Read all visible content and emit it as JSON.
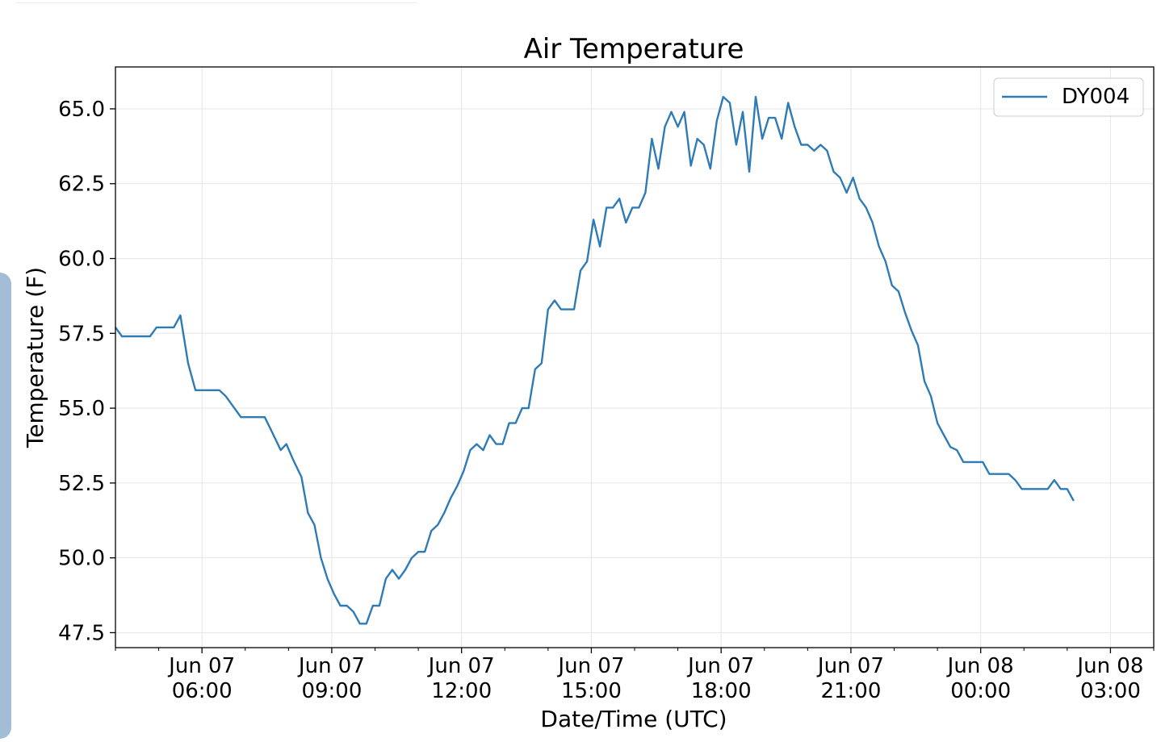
{
  "chart_data": {
    "type": "line",
    "title": "Air Temperature",
    "xlabel": "Date/Time (UTC)",
    "ylabel": "Temperature (F)",
    "x_unit": "hours",
    "xlim_hours": [
      4.0,
      28.0
    ],
    "ylim": [
      47.0,
      66.4
    ],
    "y_ticks": [
      47.5,
      50.0,
      52.5,
      55.0,
      57.5,
      60.0,
      62.5,
      65.0
    ],
    "x_ticks": [
      {
        "hour": 6,
        "line1": "Jun 07",
        "line2": "06:00"
      },
      {
        "hour": 9,
        "line1": "Jun 07",
        "line2": "09:00"
      },
      {
        "hour": 12,
        "line1": "Jun 07",
        "line2": "12:00"
      },
      {
        "hour": 15,
        "line1": "Jun 07",
        "line2": "15:00"
      },
      {
        "hour": 18,
        "line1": "Jun 07",
        "line2": "18:00"
      },
      {
        "hour": 21,
        "line1": "Jun 07",
        "line2": "21:00"
      },
      {
        "hour": 24,
        "line1": "Jun 08",
        "line2": "00:00"
      },
      {
        "hour": 27,
        "line1": "Jun 08",
        "line2": "03:00"
      }
    ],
    "grid": true,
    "legend": {
      "position": "top-right"
    },
    "series": [
      {
        "name": "DY004",
        "color": "#2f7bb5",
        "points": [
          [
            4.0,
            57.7
          ],
          [
            4.15,
            57.4
          ],
          [
            4.8,
            57.4
          ],
          [
            4.95,
            57.7
          ],
          [
            5.35,
            57.7
          ],
          [
            5.5,
            58.1
          ],
          [
            5.68,
            56.5
          ],
          [
            5.85,
            55.6
          ],
          [
            6.4,
            55.6
          ],
          [
            6.55,
            55.4
          ],
          [
            6.7,
            55.1
          ],
          [
            6.9,
            54.7
          ],
          [
            7.45,
            54.7
          ],
          [
            7.62,
            54.2
          ],
          [
            7.82,
            53.6
          ],
          [
            7.95,
            53.8
          ],
          [
            8.1,
            53.3
          ],
          [
            8.3,
            52.7
          ],
          [
            8.45,
            51.5
          ],
          [
            8.6,
            51.1
          ],
          [
            8.75,
            50.0
          ],
          [
            8.9,
            49.3
          ],
          [
            9.05,
            48.8
          ],
          [
            9.2,
            48.4
          ],
          [
            9.35,
            48.4
          ],
          [
            9.5,
            48.2
          ],
          [
            9.65,
            47.8
          ],
          [
            9.8,
            47.8
          ],
          [
            9.95,
            48.4
          ],
          [
            10.1,
            48.4
          ],
          [
            10.25,
            49.3
          ],
          [
            10.4,
            49.6
          ],
          [
            10.55,
            49.3
          ],
          [
            10.7,
            49.6
          ],
          [
            10.85,
            50.0
          ],
          [
            11.0,
            50.2
          ],
          [
            11.15,
            50.2
          ],
          [
            11.3,
            50.9
          ],
          [
            11.45,
            51.1
          ],
          [
            11.6,
            51.5
          ],
          [
            11.75,
            52.0
          ],
          [
            11.9,
            52.4
          ],
          [
            12.05,
            52.9
          ],
          [
            12.2,
            53.6
          ],
          [
            12.35,
            53.8
          ],
          [
            12.5,
            53.6
          ],
          [
            12.65,
            54.1
          ],
          [
            12.8,
            53.8
          ],
          [
            12.95,
            53.8
          ],
          [
            13.1,
            54.5
          ],
          [
            13.25,
            54.5
          ],
          [
            13.4,
            55.0
          ],
          [
            13.55,
            55.0
          ],
          [
            13.7,
            56.3
          ],
          [
            13.85,
            56.5
          ],
          [
            14.0,
            58.3
          ],
          [
            14.15,
            58.6
          ],
          [
            14.3,
            58.3
          ],
          [
            14.45,
            58.3
          ],
          [
            14.6,
            58.3
          ],
          [
            14.75,
            59.6
          ],
          [
            14.9,
            59.9
          ],
          [
            15.05,
            61.3
          ],
          [
            15.2,
            60.4
          ],
          [
            15.35,
            61.7
          ],
          [
            15.5,
            61.7
          ],
          [
            15.65,
            62.0
          ],
          [
            15.8,
            61.2
          ],
          [
            15.95,
            61.7
          ],
          [
            16.1,
            61.7
          ],
          [
            16.25,
            62.2
          ],
          [
            16.4,
            64.0
          ],
          [
            16.55,
            63.0
          ],
          [
            16.7,
            64.4
          ],
          [
            16.85,
            64.9
          ],
          [
            17.0,
            64.4
          ],
          [
            17.15,
            64.9
          ],
          [
            17.3,
            63.1
          ],
          [
            17.45,
            64.0
          ],
          [
            17.6,
            63.8
          ],
          [
            17.75,
            63.0
          ],
          [
            17.9,
            64.6
          ],
          [
            18.05,
            65.4
          ],
          [
            18.2,
            65.2
          ],
          [
            18.35,
            63.8
          ],
          [
            18.5,
            64.9
          ],
          [
            18.65,
            62.9
          ],
          [
            18.8,
            65.4
          ],
          [
            18.95,
            64.0
          ],
          [
            19.1,
            64.7
          ],
          [
            19.25,
            64.7
          ],
          [
            19.4,
            64.0
          ],
          [
            19.55,
            65.2
          ],
          [
            19.7,
            64.4
          ],
          [
            19.85,
            63.8
          ],
          [
            20.0,
            63.8
          ],
          [
            20.15,
            63.6
          ],
          [
            20.3,
            63.8
          ],
          [
            20.45,
            63.6
          ],
          [
            20.6,
            62.9
          ],
          [
            20.75,
            62.7
          ],
          [
            20.9,
            62.2
          ],
          [
            21.05,
            62.7
          ],
          [
            21.2,
            62.0
          ],
          [
            21.35,
            61.7
          ],
          [
            21.5,
            61.2
          ],
          [
            21.65,
            60.4
          ],
          [
            21.8,
            59.9
          ],
          [
            21.95,
            59.1
          ],
          [
            22.1,
            58.9
          ],
          [
            22.25,
            58.2
          ],
          [
            22.4,
            57.6
          ],
          [
            22.55,
            57.1
          ],
          [
            22.7,
            55.9
          ],
          [
            22.85,
            55.4
          ],
          [
            23.0,
            54.5
          ],
          [
            23.15,
            54.1
          ],
          [
            23.3,
            53.7
          ],
          [
            23.45,
            53.6
          ],
          [
            23.6,
            53.2
          ],
          [
            23.75,
            53.2
          ],
          [
            23.9,
            53.2
          ],
          [
            24.05,
            53.2
          ],
          [
            24.2,
            52.8
          ],
          [
            24.35,
            52.8
          ],
          [
            24.5,
            52.8
          ],
          [
            24.65,
            52.8
          ],
          [
            24.8,
            52.6
          ],
          [
            24.95,
            52.3
          ],
          [
            25.1,
            52.3
          ],
          [
            25.25,
            52.3
          ],
          [
            25.4,
            52.3
          ],
          [
            25.55,
            52.3
          ],
          [
            25.7,
            52.6
          ],
          [
            25.85,
            52.3
          ],
          [
            26.0,
            52.3
          ],
          [
            26.15,
            51.9
          ]
        ]
      }
    ]
  }
}
